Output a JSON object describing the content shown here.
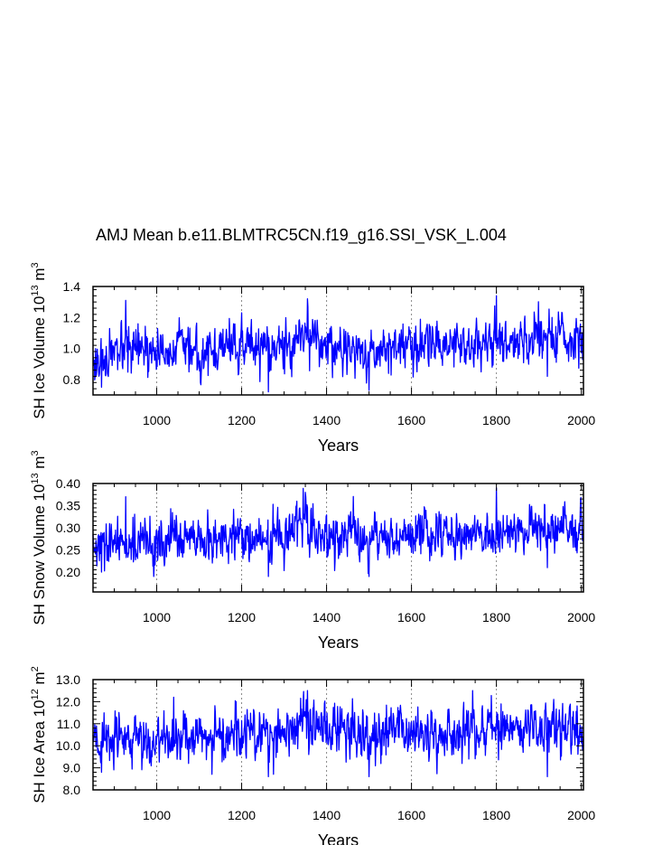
{
  "chart_data": {
    "title": "AMJ Mean b.e11.BLMTRC5CN.f19_g16.SSI_VSK_L.004",
    "type": "line",
    "series_color": "#0000ff",
    "panels": [
      {
        "type": "line",
        "series_name": "SH Ice Volume",
        "ylabel": {
          "main": "SH Ice Volume 10",
          "exp": "13",
          "unit": " m",
          "unit_exp": "3"
        },
        "xlabel": "Years",
        "xlim": [
          850,
          2005
        ],
        "ylim": [
          0.7,
          1.4
        ],
        "xticks": [
          1000,
          1200,
          1400,
          1600,
          1800,
          2000
        ],
        "yticks": [
          0.8,
          1.0,
          1.2,
          1.4
        ],
        "ytick_labels": [
          "0.8",
          "1.0",
          "1.2",
          "1.4"
        ],
        "grid_x": [
          1000,
          1200,
          1400,
          1600,
          1800
        ],
        "x": [
          850,
          900,
          950,
          1000,
          1050,
          1100,
          1150,
          1200,
          1250,
          1300,
          1350,
          1400,
          1450,
          1500,
          1550,
          1600,
          1650,
          1700,
          1750,
          1800,
          1850,
          1900,
          1950,
          2005
        ],
        "values": [
          0.92,
          0.95,
          0.98,
          0.97,
          1.01,
          0.97,
          0.99,
          1.02,
          1.0,
          1.03,
          1.09,
          1.01,
          1.0,
          0.97,
          1.01,
          1.02,
          1.04,
          1.05,
          1.01,
          1.05,
          1.07,
          1.08,
          1.06,
          1.05
        ],
        "mean": 1.0,
        "variability": 0.07,
        "range": [
          0.72,
          1.34
        ],
        "peaks": [
          [
            927,
            1.31
          ],
          [
            1355,
            1.32
          ],
          [
            1800,
            1.34
          ],
          [
            1200,
            1.23
          ]
        ],
        "troughs": [
          [
            870,
            0.75
          ],
          [
            1263,
            0.71
          ],
          [
            1500,
            0.73
          ],
          [
            1920,
            0.82
          ]
        ],
        "seed": 17
      },
      {
        "type": "line",
        "series_name": "SH Snow Volume",
        "ylabel": {
          "main": "SH Snow Volume 10",
          "exp": "13",
          "unit": " m",
          "unit_exp": "3"
        },
        "xlabel": "Years",
        "xlim": [
          850,
          2005
        ],
        "ylim": [
          0.155,
          0.4
        ],
        "xticks": [
          1000,
          1200,
          1400,
          1600,
          1800,
          2000
        ],
        "yticks": [
          0.2,
          0.25,
          0.3,
          0.35,
          0.4
        ],
        "ytick_labels": [
          "0.20",
          "0.25",
          "0.30",
          "0.35",
          "0.40"
        ],
        "grid_x": [
          1000,
          1200,
          1400,
          1600,
          1800
        ],
        "x": [
          850,
          900,
          950,
          1000,
          1050,
          1100,
          1150,
          1200,
          1250,
          1300,
          1350,
          1400,
          1450,
          1500,
          1550,
          1600,
          1650,
          1700,
          1750,
          1800,
          1850,
          1900,
          1950,
          2005
        ],
        "values": [
          0.25,
          0.26,
          0.27,
          0.26,
          0.28,
          0.26,
          0.27,
          0.28,
          0.27,
          0.28,
          0.31,
          0.28,
          0.28,
          0.27,
          0.28,
          0.28,
          0.29,
          0.29,
          0.28,
          0.29,
          0.3,
          0.3,
          0.29,
          0.29
        ],
        "mean": 0.275,
        "variability": 0.025,
        "range": [
          0.19,
          0.39
        ],
        "peaks": [
          [
            927,
            0.37
          ],
          [
            1350,
            0.38
          ],
          [
            1800,
            0.39
          ]
        ],
        "troughs": [
          [
            870,
            0.2
          ],
          [
            1263,
            0.185
          ],
          [
            1500,
            0.19
          ],
          [
            1920,
            0.21
          ]
        ],
        "seed": 29
      },
      {
        "type": "line",
        "series_name": "SH Ice Area",
        "ylabel": {
          "main": "SH Ice Area 10",
          "exp": "12",
          "unit": " m",
          "unit_exp": "2"
        },
        "xlabel": "Years",
        "xlim": [
          850,
          2005
        ],
        "ylim": [
          8.0,
          13.0
        ],
        "xticks": [
          1000,
          1200,
          1400,
          1600,
          1800,
          2000
        ],
        "yticks": [
          8.0,
          9.0,
          10.0,
          11.0,
          12.0,
          13.0
        ],
        "ytick_labels": [
          "8.0",
          "9.0",
          "10.0",
          "11.0",
          "12.0",
          "13.0"
        ],
        "grid_x": [
          1000,
          1200,
          1400,
          1600,
          1800
        ],
        "x": [
          850,
          900,
          950,
          1000,
          1050,
          1100,
          1150,
          1200,
          1250,
          1300,
          1350,
          1400,
          1450,
          1500,
          1550,
          1600,
          1650,
          1700,
          1750,
          1800,
          1850,
          1900,
          1950,
          2005
        ],
        "values": [
          10.1,
          10.2,
          10.4,
          10.3,
          10.6,
          10.3,
          10.4,
          10.6,
          10.5,
          10.6,
          11.0,
          10.6,
          10.6,
          10.5,
          10.6,
          10.6,
          10.7,
          10.8,
          10.6,
          10.8,
          10.9,
          10.9,
          10.8,
          10.7
        ],
        "mean": 10.5,
        "variability": 0.55,
        "range": [
          8.5,
          12.5
        ],
        "peaks": [
          [
            1040,
            12.2
          ],
          [
            1355,
            12.5
          ],
          [
            1935,
            12.1
          ]
        ],
        "troughs": [
          [
            870,
            8.8
          ],
          [
            1263,
            8.6
          ],
          [
            1500,
            8.6
          ],
          [
            1920,
            8.6
          ]
        ],
        "seed": 43
      }
    ]
  }
}
